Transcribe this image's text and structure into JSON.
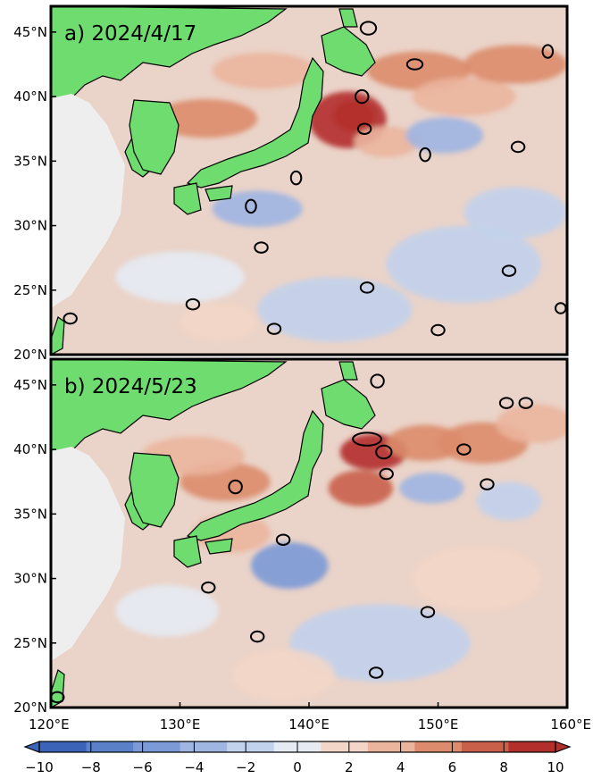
{
  "panels": [
    {
      "title": "a) 2024/4/17",
      "blobs": [
        {
          "lon": 143.0,
          "lat": 38.2,
          "rx": 3.0,
          "ry": 2.2,
          "v": 9
        },
        {
          "lon": 143.5,
          "lat": 38.5,
          "rx": 1.6,
          "ry": 1.2,
          "v": 10
        },
        {
          "lon": 146.0,
          "lat": 36.5,
          "rx": 2.5,
          "ry": 1.2,
          "v": 4
        },
        {
          "lon": 148.5,
          "lat": 42.0,
          "rx": 4.0,
          "ry": 1.5,
          "v": 6
        },
        {
          "lon": 152.0,
          "lat": 40.0,
          "rx": 4.0,
          "ry": 1.5,
          "v": 4
        },
        {
          "lon": 156.0,
          "lat": 42.5,
          "rx": 4.0,
          "ry": 1.5,
          "v": 5
        },
        {
          "lon": 150.5,
          "lat": 37.0,
          "rx": 3.0,
          "ry": 1.4,
          "v": -4
        },
        {
          "lon": 136.0,
          "lat": 31.3,
          "rx": 3.5,
          "ry": 1.4,
          "v": -5
        },
        {
          "lon": 132.0,
          "lat": 38.3,
          "rx": 4.0,
          "ry": 1.5,
          "v": 5
        },
        {
          "lon": 136.5,
          "lat": 42.0,
          "rx": 4.0,
          "ry": 1.4,
          "v": 4
        },
        {
          "lon": 142.0,
          "lat": 23.5,
          "rx": 6.0,
          "ry": 2.5,
          "v": -2
        },
        {
          "lon": 152.0,
          "lat": 27.0,
          "rx": 6.0,
          "ry": 3.0,
          "v": -2
        },
        {
          "lon": 130.0,
          "lat": 26.0,
          "rx": 5.0,
          "ry": 2.0,
          "v": -1
        },
        {
          "lon": 156.0,
          "lat": 31.0,
          "rx": 4.0,
          "ry": 2.0,
          "v": -2
        },
        {
          "lon": 133.0,
          "lat": 22.5,
          "rx": 3.0,
          "ry": 1.5,
          "v": 2
        }
      ],
      "eddies": [
        {
          "lon": 144.6,
          "lat": 45.3,
          "rx": 0.6,
          "ry": 0.5
        },
        {
          "lon": 148.2,
          "lat": 42.5,
          "rx": 0.6,
          "ry": 0.4
        },
        {
          "lon": 144.1,
          "lat": 40.0,
          "rx": 0.5,
          "ry": 0.5
        },
        {
          "lon": 144.3,
          "lat": 37.5,
          "rx": 0.5,
          "ry": 0.4
        },
        {
          "lon": 149.0,
          "lat": 35.5,
          "rx": 0.4,
          "ry": 0.5
        },
        {
          "lon": 156.2,
          "lat": 36.1,
          "rx": 0.5,
          "ry": 0.4
        },
        {
          "lon": 158.5,
          "lat": 43.5,
          "rx": 0.4,
          "ry": 0.5
        },
        {
          "lon": 139.0,
          "lat": 33.7,
          "rx": 0.4,
          "ry": 0.5
        },
        {
          "lon": 135.5,
          "lat": 31.5,
          "rx": 0.4,
          "ry": 0.5
        },
        {
          "lon": 136.3,
          "lat": 28.3,
          "rx": 0.5,
          "ry": 0.4
        },
        {
          "lon": 144.5,
          "lat": 25.2,
          "rx": 0.5,
          "ry": 0.4
        },
        {
          "lon": 155.5,
          "lat": 26.5,
          "rx": 0.5,
          "ry": 0.4
        },
        {
          "lon": 131.0,
          "lat": 23.9,
          "rx": 0.5,
          "ry": 0.4
        },
        {
          "lon": 137.3,
          "lat": 22.0,
          "rx": 0.5,
          "ry": 0.4
        },
        {
          "lon": 150.0,
          "lat": 21.9,
          "rx": 0.5,
          "ry": 0.4
        },
        {
          "lon": 159.5,
          "lat": 23.6,
          "rx": 0.4,
          "ry": 0.4
        },
        {
          "lon": 121.5,
          "lat": 22.8,
          "rx": 0.5,
          "ry": 0.4
        }
      ]
    },
    {
      "title": "b) 2024/5/23",
      "blobs": [
        {
          "lon": 145.0,
          "lat": 39.8,
          "rx": 2.6,
          "ry": 1.4,
          "v": 10
        },
        {
          "lon": 144.0,
          "lat": 37.0,
          "rx": 2.5,
          "ry": 1.4,
          "v": 8
        },
        {
          "lon": 149.0,
          "lat": 40.5,
          "rx": 3.0,
          "ry": 1.4,
          "v": 6
        },
        {
          "lon": 153.5,
          "lat": 40.5,
          "rx": 3.5,
          "ry": 1.6,
          "v": 5
        },
        {
          "lon": 157.5,
          "lat": 42.0,
          "rx": 3.0,
          "ry": 1.5,
          "v": 4
        },
        {
          "lon": 138.5,
          "lat": 31.0,
          "rx": 3.0,
          "ry": 1.8,
          "v": -7
        },
        {
          "lon": 149.5,
          "lat": 37.0,
          "rx": 2.5,
          "ry": 1.2,
          "v": -5
        },
        {
          "lon": 155.5,
          "lat": 36.0,
          "rx": 2.5,
          "ry": 1.5,
          "v": -3
        },
        {
          "lon": 133.5,
          "lat": 37.5,
          "rx": 3.5,
          "ry": 1.5,
          "v": 5
        },
        {
          "lon": 131.0,
          "lat": 39.5,
          "rx": 4.0,
          "ry": 1.5,
          "v": 3
        },
        {
          "lon": 145.5,
          "lat": 25.0,
          "rx": 7.0,
          "ry": 3.0,
          "v": -2
        },
        {
          "lon": 129.0,
          "lat": 27.5,
          "rx": 4.0,
          "ry": 2.0,
          "v": -1
        },
        {
          "lon": 153.0,
          "lat": 30.0,
          "rx": 5.0,
          "ry": 2.5,
          "v": 2
        },
        {
          "lon": 134.0,
          "lat": 33.5,
          "rx": 3.0,
          "ry": 1.5,
          "v": 3
        },
        {
          "lon": 138.0,
          "lat": 22.5,
          "rx": 4.0,
          "ry": 2.0,
          "v": 2
        }
      ],
      "eddies": [
        {
          "lon": 145.3,
          "lat": 45.3,
          "rx": 0.5,
          "ry": 0.5
        },
        {
          "lon": 144.5,
          "lat": 40.8,
          "rx": 1.1,
          "ry": 0.5
        },
        {
          "lon": 145.8,
          "lat": 39.8,
          "rx": 0.6,
          "ry": 0.5
        },
        {
          "lon": 146.0,
          "lat": 38.1,
          "rx": 0.5,
          "ry": 0.4
        },
        {
          "lon": 152.0,
          "lat": 40.0,
          "rx": 0.5,
          "ry": 0.4
        },
        {
          "lon": 153.8,
          "lat": 37.3,
          "rx": 0.5,
          "ry": 0.4
        },
        {
          "lon": 155.3,
          "lat": 43.6,
          "rx": 0.5,
          "ry": 0.4
        },
        {
          "lon": 156.8,
          "lat": 43.6,
          "rx": 0.5,
          "ry": 0.4
        },
        {
          "lon": 134.3,
          "lat": 37.1,
          "rx": 0.5,
          "ry": 0.5
        },
        {
          "lon": 138.0,
          "lat": 33.0,
          "rx": 0.5,
          "ry": 0.4
        },
        {
          "lon": 132.2,
          "lat": 29.3,
          "rx": 0.5,
          "ry": 0.4
        },
        {
          "lon": 136.0,
          "lat": 25.5,
          "rx": 0.5,
          "ry": 0.4
        },
        {
          "lon": 149.2,
          "lat": 27.4,
          "rx": 0.5,
          "ry": 0.4
        },
        {
          "lon": 145.2,
          "lat": 22.7,
          "rx": 0.5,
          "ry": 0.4
        },
        {
          "lon": 120.5,
          "lat": 20.8,
          "rx": 0.5,
          "ry": 0.4
        }
      ]
    }
  ],
  "axes": {
    "lon_ticks": [
      "120°E",
      "130°E",
      "140°E",
      "150°E",
      "160°E"
    ],
    "lat_ticks": [
      "20°N",
      "25°N",
      "30°N",
      "35°N",
      "40°N",
      "45°N"
    ],
    "lon_range": [
      120,
      160
    ],
    "lat_range": [
      20,
      47
    ]
  },
  "colorbar": {
    "ticks": [
      "−10",
      "−8",
      "−6",
      "−4",
      "−2",
      "0",
      "2",
      "4",
      "6",
      "8",
      "10"
    ],
    "range": [
      -10,
      10
    ],
    "colors": [
      "#3b63b8",
      "#5a80c8",
      "#7c9ad6",
      "#9fb5e2",
      "#c2d1ec",
      "#e6ebf3",
      "#f3d6c7",
      "#ebb59d",
      "#dc8c6c",
      "#c9604a",
      "#b22f2c"
    ]
  },
  "colors": {
    "land": "#6fdc6f",
    "sea_background": "#ead3c8",
    "china_ice": "#eeeeee",
    "frame": "#000000"
  }
}
